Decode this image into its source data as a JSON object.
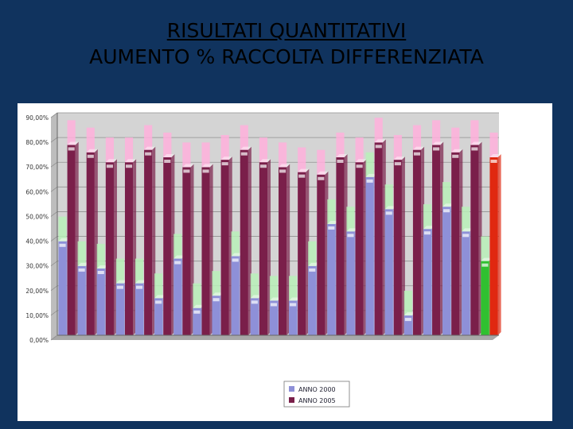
{
  "slide": {
    "title_line1": "RISULTATI QUANTITATIVI",
    "title_line2": "AUMENTO % RACCOLTA DIFFERENZIATA"
  },
  "colors": {
    "background": "#10335e",
    "panel": "#ffffff",
    "plot_bg": "#d4d4d4",
    "series_2000": "#8e90d8",
    "series_2005": "#7a1f4a",
    "series_top_2000": "#b8f0b8",
    "series_top_2005": "#ffb0dc",
    "highlight_2000": "#30c030",
    "highlight_2005": "#e02810"
  },
  "chart_data": {
    "type": "bar",
    "subtype": "grouped 3d columns with ghost target bars",
    "ylim": [
      0,
      90
    ],
    "yticks": [
      "0,00%",
      "10,00%",
      "20,00%",
      "30,00%",
      "40,00%",
      "50,00%",
      "60,00%",
      "70,00%",
      "80,00%",
      "90,00%"
    ],
    "grid": true,
    "legend_position": "bottom-center",
    "series": [
      {
        "name": "ANNO 2000",
        "values": [
          38,
          28,
          27,
          21,
          21,
          15,
          31,
          11,
          16,
          32,
          15,
          14,
          14,
          28,
          45,
          42,
          64,
          51,
          8,
          43,
          52,
          42,
          30
        ],
        "ghost_values": [
          48,
          38,
          37,
          31,
          31,
          25,
          41,
          21,
          26,
          42,
          25,
          24,
          24,
          38,
          55,
          52,
          74,
          61,
          18,
          53,
          62,
          52,
          40
        ]
      },
      {
        "name": "ANNO 2005",
        "values": [
          77,
          74,
          70,
          70,
          75,
          72,
          68,
          68,
          71,
          75,
          70,
          68,
          66,
          65,
          72,
          70,
          78,
          71,
          75,
          77,
          74,
          77,
          72
        ],
        "ghost_values": [
          87,
          84,
          80,
          80,
          85,
          82,
          78,
          78,
          81,
          85,
          80,
          78,
          76,
          75,
          82,
          80,
          88,
          81,
          85,
          87,
          84,
          87,
          82
        ]
      }
    ]
  }
}
